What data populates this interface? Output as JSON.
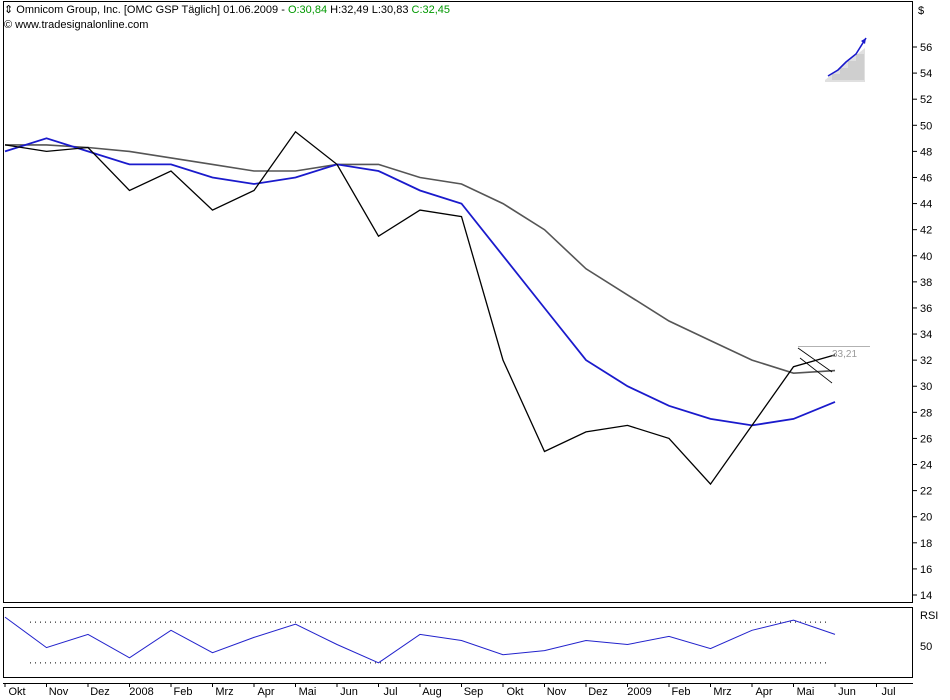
{
  "header": {
    "title": "Omnicom Group, Inc. [OMC GSP  Täglich] 01.06.2009 - ",
    "open": "O:30,84",
    "high": "H:32,49",
    "low": "L:30,83",
    "close": "C:32,45",
    "source": "www.tradesignalonline.com"
  },
  "currency": "$",
  "rsi_label": "RSI",
  "rsi_tick": "50",
  "last_price_label": "33,21",
  "colors": {
    "candles": "#000000",
    "ma_fast": "#1a1acc",
    "ma_slow": "#555555",
    "rsi": "#2222cc",
    "open_close": "#009900"
  },
  "chart_data": [
    {
      "type": "line",
      "y_unit": "$",
      "ylim": [
        14,
        56
      ],
      "y_ticks": [
        14,
        16,
        18,
        20,
        22,
        24,
        26,
        28,
        30,
        32,
        34,
        36,
        38,
        40,
        42,
        44,
        46,
        48,
        50,
        52,
        54,
        56
      ],
      "x_labels": [
        "Okt",
        "Nov",
        "Dez",
        "2008",
        "Feb",
        "Mrz",
        "Apr",
        "Mai",
        "Jun",
        "Jul",
        "Aug",
        "Sep",
        "Okt",
        "Nov",
        "Dez",
        "2009",
        "Feb",
        "Mrz",
        "Apr",
        "Mai",
        "Jun",
        "Jul"
      ],
      "x": [
        "2007-10",
        "2007-11",
        "2007-12",
        "2008-01",
        "2008-02",
        "2008-03",
        "2008-04",
        "2008-05",
        "2008-06",
        "2008-07",
        "2008-08",
        "2008-09",
        "2008-10",
        "2008-11",
        "2008-12",
        "2009-01",
        "2009-02",
        "2009-03",
        "2009-04",
        "2009-05",
        "2009-06"
      ],
      "series": [
        {
          "values": [
            48.5,
            48,
            48.3,
            45,
            46.5,
            43.5,
            45,
            49.5,
            47,
            41.5,
            43.5,
            43,
            32,
            25,
            26.5,
            27,
            26,
            22.5,
            27,
            31.5,
            32.4
          ]
        },
        {
          "values": [
            48,
            49,
            48,
            47,
            47,
            46,
            45.5,
            46,
            47,
            46.5,
            45,
            44,
            40,
            36,
            32,
            30,
            28.5,
            27.5,
            27,
            27.5,
            28.8
          ]
        },
        {
          "values": [
            48.5,
            48.5,
            48.3,
            48,
            47.5,
            47,
            46.5,
            46.5,
            47,
            47,
            46,
            45.5,
            44,
            42,
            39,
            37,
            35,
            33.5,
            32,
            31,
            31.2
          ]
        }
      ],
      "last_value": 33.21
    },
    {
      "type": "line",
      "title": "RSI",
      "ylim": [
        20,
        80
      ],
      "y_ticks": [
        50
      ],
      "levels": [
        30,
        70
      ],
      "x": [
        "2007-10",
        "2007-11",
        "2007-12",
        "2008-01",
        "2008-02",
        "2008-03",
        "2008-04",
        "2008-05",
        "2008-06",
        "2008-07",
        "2008-08",
        "2008-09",
        "2008-10",
        "2008-11",
        "2008-12",
        "2009-01",
        "2009-02",
        "2009-03",
        "2009-04",
        "2009-05",
        "2009-06"
      ],
      "values": [
        75,
        45,
        58,
        35,
        62,
        40,
        55,
        68,
        48,
        30,
        58,
        52,
        38,
        42,
        52,
        48,
        56,
        44,
        62,
        72,
        58
      ]
    }
  ]
}
